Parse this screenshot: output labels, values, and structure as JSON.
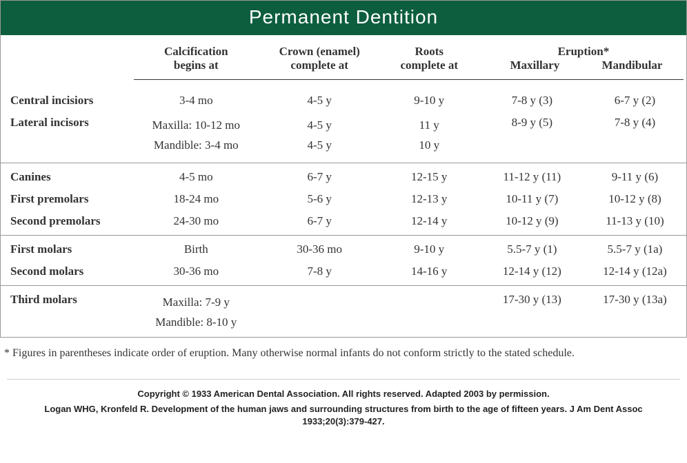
{
  "title": "Permanent  Dentition",
  "headers": {
    "col0": "",
    "col1_line1": "Calcification",
    "col1_line2": "begins at",
    "col2_line1": "Crown (enamel)",
    "col2_line2": "complete at",
    "col3_line1": "Roots",
    "col3_line2": "complete at",
    "eruption": "Eruption*",
    "col4": "Maxillary",
    "col5": "Mandibular"
  },
  "rows": [
    {
      "label": "Central incisiors",
      "calc": [
        "3-4 mo"
      ],
      "crown": [
        "4-5 y"
      ],
      "roots": [
        "9-10 y"
      ],
      "max": "7-8 y (3)",
      "mand": "6-7 y (2)",
      "divider": false
    },
    {
      "label": "Lateral incisors",
      "calc": [
        "Maxilla: 10-12 mo",
        "Mandible: 3-4 mo"
      ],
      "crown": [
        "4-5 y",
        "4-5 y"
      ],
      "roots": [
        "11 y",
        "10 y"
      ],
      "max": "8-9 y (5)",
      "mand": "7-8 y (4)",
      "divider": true
    },
    {
      "label": "Canines",
      "calc": [
        "4-5 mo"
      ],
      "crown": [
        "6-7 y"
      ],
      "roots": [
        "12-15 y"
      ],
      "max": "11-12 y (11)",
      "mand": "9-11 y (6)",
      "divider": false
    },
    {
      "label": "First premolars",
      "calc": [
        "18-24 mo"
      ],
      "crown": [
        "5-6 y"
      ],
      "roots": [
        "12-13 y"
      ],
      "max": "10-11 y (7)",
      "mand": "10-12 y (8)",
      "divider": false
    },
    {
      "label": "Second premolars",
      "calc": [
        "24-30 mo"
      ],
      "crown": [
        "6-7 y"
      ],
      "roots": [
        "12-14 y"
      ],
      "max": "10-12 y (9)",
      "mand": "11-13 y (10)",
      "divider": true
    },
    {
      "label": "First molars",
      "calc": [
        "Birth"
      ],
      "crown": [
        "30-36 mo"
      ],
      "roots": [
        "9-10 y"
      ],
      "max": "5.5-7 y (1)",
      "mand": "5.5-7 y (1a)",
      "divider": false
    },
    {
      "label": "Second molars",
      "calc": [
        "30-36 mo"
      ],
      "crown": [
        "7-8 y"
      ],
      "roots": [
        "14-16 y"
      ],
      "max": "12-14 y (12)",
      "mand": "12-14 y (12a)",
      "divider": true
    },
    {
      "label": "Third molars",
      "calc": [
        "Maxilla: 7-9 y",
        "Mandible: 8-10 y"
      ],
      "crown": [
        ""
      ],
      "roots": [
        ""
      ],
      "max": "17-30 y (13)",
      "mand": "17-30 y (13a)",
      "divider": false
    }
  ],
  "footnote": "* Figures in parentheses indicate order of eruption. Many otherwise normal infants do not conform strictly to the stated schedule.",
  "copyright_line1": "Copyright © 1933 American Dental Association. All rights reserved. Adapted 2003 by permission.",
  "copyright_line2": "Logan WHG, Kronfeld R. Development of the human jaws and surrounding structures from birth to the age of fifteen years. J Am Dent Assoc 1933;20(3):379-427.",
  "col_widths": [
    "19%",
    "19%",
    "17%",
    "15%",
    "15%",
    "15%"
  ],
  "colors": {
    "title_bg": "#0d5e3f",
    "title_fg": "#ffffff",
    "border": "#999999",
    "text": "#333333"
  }
}
